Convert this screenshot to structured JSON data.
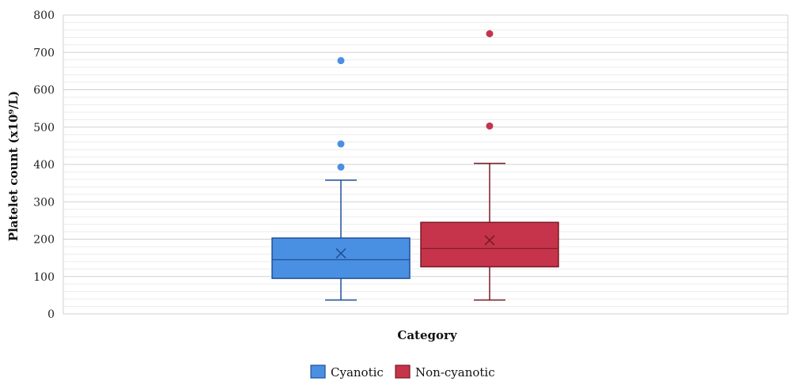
{
  "chart_data": {
    "type": "box",
    "xlabel": "Category",
    "ylabel": "Platelet count (x10⁹/L)",
    "ylim": [
      0,
      800
    ],
    "yticks": [
      0,
      100,
      200,
      300,
      400,
      500,
      600,
      700,
      800
    ],
    "grid": true,
    "legend_position": "bottom",
    "series": [
      {
        "name": "Cyanotic",
        "color": "#4a90e2",
        "stroke": "#1f4f99",
        "min": 37,
        "q1": 95,
        "median": 145,
        "mean": 162,
        "q3": 203,
        "max": 358,
        "outliers": [
          393,
          455,
          678
        ]
      },
      {
        "name": "Non-cyanotic",
        "color": "#c5344a",
        "stroke": "#7a1a26",
        "min": 37,
        "q1": 126,
        "median": 175,
        "mean": 197,
        "q3": 245,
        "max": 403,
        "outliers": [
          503,
          750
        ]
      }
    ]
  }
}
